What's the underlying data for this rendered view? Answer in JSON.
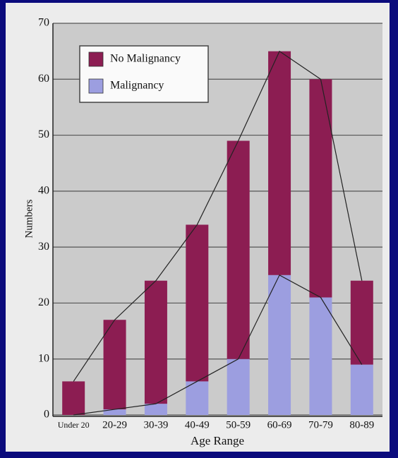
{
  "chart_data": {
    "type": "stacked_bar",
    "x_label": "Age Range",
    "y_label": "Numbers",
    "categories": [
      "Under 20",
      "20-29",
      "30-39",
      "40-49",
      "50-59",
      "60-69",
      "70-79",
      "80-89"
    ],
    "series": [
      {
        "name": "Malignancy",
        "color": "#9c9ee0",
        "values": [
          0,
          1,
          2,
          6,
          10,
          25,
          21,
          9
        ]
      },
      {
        "name": "No Malignancy",
        "color": "#8c1d52",
        "values": [
          6,
          16,
          22,
          28,
          39,
          40,
          39,
          15
        ]
      }
    ],
    "legend_order": [
      1,
      0
    ],
    "ylim": [
      0,
      70
    ],
    "yticks": [
      0,
      10,
      20,
      30,
      40,
      50,
      60,
      70
    ],
    "grid": true,
    "stack_lines": true
  }
}
